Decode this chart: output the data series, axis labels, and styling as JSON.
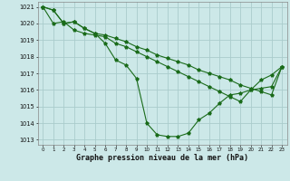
{
  "title": "Graphe pression niveau de la mer (hPa)",
  "background_color": "#cce8e8",
  "grid_color": "#aacccc",
  "line_color": "#1a6b1a",
  "xlim": [
    -0.5,
    23.5
  ],
  "ylim": [
    1012.7,
    1021.3
  ],
  "yticks": [
    1013,
    1014,
    1015,
    1016,
    1017,
    1018,
    1019,
    1020,
    1021
  ],
  "xticks": [
    0,
    1,
    2,
    3,
    4,
    5,
    6,
    7,
    8,
    9,
    10,
    11,
    12,
    13,
    14,
    15,
    16,
    17,
    18,
    19,
    20,
    21,
    22,
    23
  ],
  "line1_y": [
    1021.0,
    1020.8,
    1020.0,
    1020.1,
    1019.7,
    1019.4,
    1019.3,
    1019.1,
    1018.9,
    1018.6,
    1018.4,
    1018.1,
    1017.9,
    1017.7,
    1017.5,
    1017.2,
    1017.0,
    1016.8,
    1016.6,
    1016.3,
    1016.1,
    1015.9,
    1015.7,
    1017.4
  ],
  "line2_y": [
    1021.0,
    1020.0,
    1020.1,
    1019.6,
    1019.4,
    1019.3,
    1019.2,
    1018.8,
    1018.6,
    1018.3,
    1018.0,
    1017.7,
    1017.4,
    1017.1,
    1016.8,
    1016.5,
    1016.2,
    1015.9,
    1015.6,
    1015.3,
    1016.0,
    1016.1,
    1016.2,
    1017.4
  ],
  "line3_y": [
    1021.0,
    1020.8,
    1020.0,
    1020.1,
    1019.7,
    1019.4,
    1018.8,
    1017.8,
    1017.5,
    1016.7,
    1014.0,
    1013.3,
    1013.2,
    1013.2,
    1013.4,
    1014.2,
    1014.6,
    1015.2,
    1015.7,
    1015.8,
    1016.0,
    1016.6,
    1016.9,
    1017.4
  ]
}
